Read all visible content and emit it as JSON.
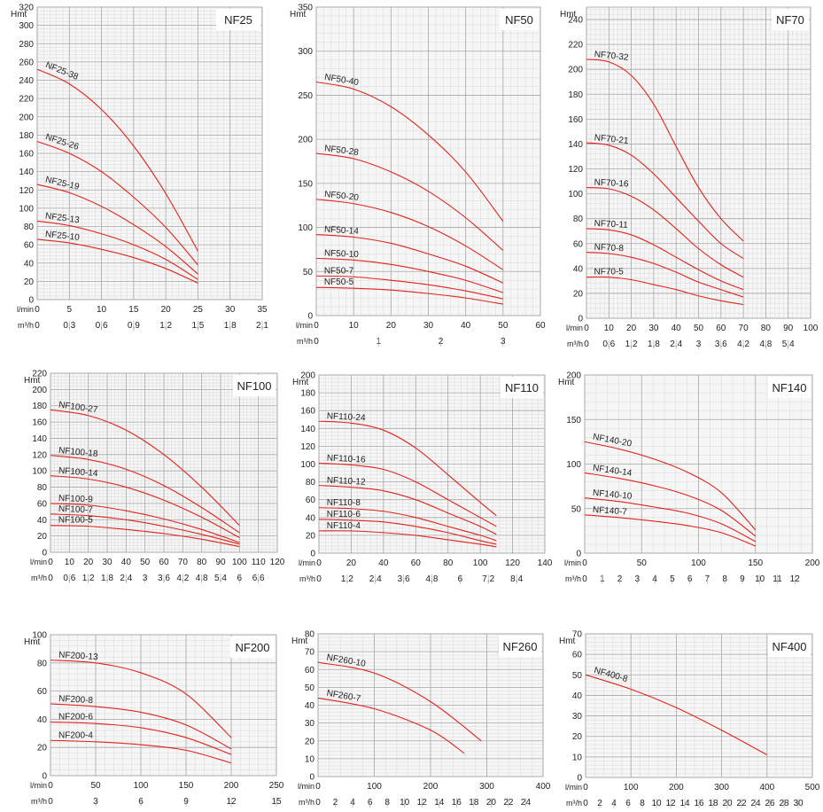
{
  "colors": {
    "curve": "#e2231a",
    "grid_minor": "#d9d9d9",
    "grid_major": "#a6a6a6",
    "plot_bg": "#f6f6f6",
    "text": "#222222"
  },
  "chart_data": [
    {
      "type": "line",
      "title": "NF25",
      "ylabel": "Hmt",
      "ylim": [
        0,
        320
      ],
      "yticks": [
        0,
        20,
        40,
        60,
        80,
        100,
        120,
        140,
        160,
        180,
        200,
        220,
        240,
        260,
        280,
        300,
        320
      ],
      "xlim": [
        0,
        35
      ],
      "xticks": [
        0,
        5,
        10,
        15,
        20,
        25,
        30,
        35
      ],
      "xlabel": "l/min",
      "xlabel2": "m³/h",
      "x2ticks": [
        "0",
        "0,3",
        "0,6",
        "0,9",
        "1,2",
        "1,5",
        "1,8",
        "2,1"
      ],
      "series": [
        {
          "name": "NF25-38",
          "x": [
            0,
            5,
            10,
            15,
            20,
            25
          ],
          "y": [
            252,
            236,
            208,
            168,
            116,
            53
          ]
        },
        {
          "name": "NF25-26",
          "x": [
            0,
            5,
            10,
            15,
            20,
            25
          ],
          "y": [
            173,
            160,
            140,
            112,
            79,
            38
          ]
        },
        {
          "name": "NF25-19",
          "x": [
            0,
            5,
            10,
            15,
            20,
            25
          ],
          "y": [
            126,
            117,
            102,
            82,
            58,
            28
          ]
        },
        {
          "name": "NF25-13",
          "x": [
            0,
            5,
            10,
            15,
            20,
            25
          ],
          "y": [
            86,
            81,
            72,
            60,
            44,
            22
          ]
        },
        {
          "name": "NF25-10",
          "x": [
            0,
            5,
            10,
            15,
            20,
            25
          ],
          "y": [
            66,
            62,
            55,
            46,
            34,
            18
          ]
        }
      ]
    },
    {
      "type": "line",
      "title": "NF50",
      "ylabel": "Hmt",
      "ylim": [
        0,
        350
      ],
      "yticks": [
        0,
        50,
        100,
        150,
        200,
        250,
        300,
        350
      ],
      "xlim": [
        0,
        60
      ],
      "xticks": [
        0,
        10,
        20,
        30,
        40,
        50,
        60
      ],
      "xlabel": "l/min",
      "xlabel2": "m³/h",
      "x2ticks": [
        "0",
        "1",
        "2",
        "3"
      ],
      "series": [
        {
          "name": "NF50-40",
          "x": [
            0,
            10,
            20,
            30,
            40,
            50
          ],
          "y": [
            265,
            257,
            237,
            205,
            163,
            107
          ]
        },
        {
          "name": "NF50-28",
          "x": [
            0,
            10,
            20,
            30,
            40,
            50
          ],
          "y": [
            184,
            178,
            163,
            141,
            111,
            74
          ]
        },
        {
          "name": "NF50-20",
          "x": [
            0,
            10,
            20,
            30,
            40,
            50
          ],
          "y": [
            132,
            127,
            117,
            101,
            79,
            52
          ]
        },
        {
          "name": "NF50-14",
          "x": [
            0,
            10,
            20,
            30,
            40,
            50
          ],
          "y": [
            92,
            89,
            82,
            70,
            56,
            37
          ]
        },
        {
          "name": "NF50-10",
          "x": [
            0,
            10,
            20,
            30,
            40,
            50
          ],
          "y": [
            65,
            63,
            58,
            50,
            40,
            26
          ]
        },
        {
          "name": "NF50-7",
          "x": [
            0,
            10,
            20,
            30,
            40,
            50
          ],
          "y": [
            45,
            44,
            40,
            35,
            28,
            19
          ]
        },
        {
          "name": "NF50-5",
          "x": [
            0,
            10,
            20,
            30,
            40,
            50
          ],
          "y": [
            32,
            31,
            29,
            25,
            20,
            13
          ]
        }
      ]
    },
    {
      "type": "line",
      "title": "NF70",
      "ylabel": "Hmt",
      "ylim": [
        0,
        250
      ],
      "yticks": [
        0,
        20,
        40,
        60,
        80,
        100,
        120,
        140,
        160,
        180,
        200,
        220,
        240
      ],
      "xlim": [
        0,
        100
      ],
      "xticks": [
        0,
        10,
        20,
        30,
        40,
        50,
        60,
        70,
        80,
        90,
        100
      ],
      "xlabel": "l/min",
      "xlabel2": "m³/h",
      "x2ticks": [
        "0",
        "0,6",
        "1,2",
        "1,8",
        "2,4",
        "3",
        "3,6",
        "4,2",
        "4,8",
        "5,4"
      ],
      "series": [
        {
          "name": "NF70-32",
          "x": [
            0,
            10,
            20,
            30,
            40,
            50,
            60,
            70
          ],
          "y": [
            208,
            206,
            195,
            172,
            138,
            105,
            80,
            62
          ]
        },
        {
          "name": "NF70-21",
          "x": [
            0,
            10,
            20,
            30,
            40,
            50,
            60,
            70
          ],
          "y": [
            141,
            139,
            131,
            116,
            97,
            78,
            60,
            48
          ]
        },
        {
          "name": "NF70-16",
          "x": [
            0,
            10,
            20,
            30,
            40,
            50,
            60,
            70
          ],
          "y": [
            105,
            104,
            98,
            87,
            72,
            56,
            43,
            33
          ]
        },
        {
          "name": "NF70-11",
          "x": [
            0,
            10,
            20,
            30,
            40,
            50,
            60,
            70
          ],
          "y": [
            72,
            71,
            67,
            59,
            49,
            39,
            30,
            23
          ]
        },
        {
          "name": "NF70-8",
          "x": [
            0,
            10,
            20,
            30,
            40,
            50,
            60,
            70
          ],
          "y": [
            53,
            52,
            49,
            44,
            37,
            29,
            23,
            17
          ]
        },
        {
          "name": "NF70-5",
          "x": [
            0,
            10,
            20,
            30,
            40,
            50,
            60,
            70
          ],
          "y": [
            33,
            33,
            31,
            27,
            23,
            18,
            14,
            11
          ]
        }
      ]
    },
    {
      "type": "line",
      "title": "NF100",
      "ylabel": "Hmt",
      "ylim": [
        0,
        220
      ],
      "yticks": [
        0,
        20,
        40,
        60,
        80,
        100,
        120,
        140,
        160,
        180,
        200,
        220
      ],
      "xlim": [
        0,
        120
      ],
      "xticks": [
        0,
        10,
        20,
        30,
        40,
        50,
        60,
        70,
        80,
        90,
        100,
        110,
        120
      ],
      "xlabel": "l/min",
      "xlabel2": "m³/h",
      "x2ticks": [
        "0",
        "0,6",
        "1,2",
        "1,8",
        "2,4",
        "3",
        "3,6",
        "4,2",
        "4,8",
        "5,4",
        "6",
        "6,6"
      ],
      "series": [
        {
          "name": "NF100-27",
          "x": [
            0,
            20,
            40,
            60,
            80,
            100
          ],
          "y": [
            175,
            168,
            150,
            120,
            80,
            33
          ]
        },
        {
          "name": "NF100-18",
          "x": [
            0,
            20,
            40,
            60,
            80,
            100
          ],
          "y": [
            119,
            114,
            102,
            82,
            55,
            24
          ]
        },
        {
          "name": "NF100-14",
          "x": [
            0,
            20,
            40,
            60,
            80,
            100
          ],
          "y": [
            94,
            90,
            80,
            64,
            43,
            18
          ]
        },
        {
          "name": "NF100-9",
          "x": [
            0,
            20,
            40,
            60,
            80,
            100
          ],
          "y": [
            60,
            58,
            51,
            41,
            28,
            12
          ]
        },
        {
          "name": "NF100-7",
          "x": [
            0,
            20,
            40,
            60,
            80,
            100
          ],
          "y": [
            47,
            45,
            40,
            32,
            22,
            10
          ]
        },
        {
          "name": "NF100-5",
          "x": [
            0,
            20,
            40,
            60,
            80,
            100
          ],
          "y": [
            33,
            32,
            28,
            23,
            16,
            7
          ]
        }
      ]
    },
    {
      "type": "line",
      "title": "NF110",
      "ylabel": "Hmt",
      "ylim": [
        0,
        200
      ],
      "yticks": [
        0,
        20,
        40,
        60,
        80,
        100,
        120,
        140,
        160,
        180,
        200
      ],
      "xlim": [
        0,
        140
      ],
      "xticks": [
        0,
        20,
        40,
        60,
        80,
        100,
        120,
        140
      ],
      "xlabel": "l/min",
      "xlabel2": "m³/h",
      "x2ticks": [
        "0",
        "1,2",
        "2,4",
        "3,6",
        "4,8",
        "6",
        "7,2",
        "8,4"
      ],
      "series": [
        {
          "name": "NF110-24",
          "x": [
            0,
            20,
            40,
            60,
            80,
            100,
            110
          ],
          "y": [
            148,
            146,
            138,
            118,
            88,
            57,
            42
          ]
        },
        {
          "name": "NF110-16",
          "x": [
            0,
            20,
            40,
            60,
            80,
            100,
            110
          ],
          "y": [
            101,
            99,
            94,
            80,
            60,
            40,
            30
          ]
        },
        {
          "name": "NF110-12",
          "x": [
            0,
            20,
            40,
            60,
            80,
            100,
            110
          ],
          "y": [
            76,
            74,
            70,
            60,
            45,
            30,
            21
          ]
        },
        {
          "name": "NF110-8",
          "x": [
            0,
            20,
            40,
            60,
            80,
            100,
            110
          ],
          "y": [
            51,
            50,
            47,
            40,
            30,
            20,
            14
          ]
        },
        {
          "name": "NF110-6",
          "x": [
            0,
            20,
            40,
            60,
            80,
            100,
            110
          ],
          "y": [
            38,
            37,
            35,
            30,
            23,
            14,
            10
          ]
        },
        {
          "name": "NF110-4",
          "x": [
            0,
            20,
            40,
            60,
            80,
            100,
            110
          ],
          "y": [
            25,
            25,
            23,
            20,
            15,
            10,
            7
          ]
        }
      ]
    },
    {
      "type": "line",
      "title": "NF140",
      "ylabel": "Hmt",
      "ylim": [
        0,
        200
      ],
      "yticks": [
        0,
        50,
        100,
        150,
        200
      ],
      "xlim": [
        0,
        200
      ],
      "xticks": [
        0,
        50,
        100,
        150,
        200
      ],
      "xlabel": "l/min",
      "xlabel2": "m³/h",
      "x2ticks": [
        "0",
        "1",
        "2",
        "3",
        "4",
        "5",
        "6",
        "7",
        "8",
        "9",
        "10",
        "11",
        "12"
      ],
      "series": [
        {
          "name": "NF140-20",
          "x": [
            0,
            30,
            60,
            90,
            120,
            150
          ],
          "y": [
            125,
            117,
            106,
            91,
            68,
            26
          ]
        },
        {
          "name": "NF140-14",
          "x": [
            0,
            30,
            60,
            90,
            120,
            150
          ],
          "y": [
            90,
            84,
            76,
            65,
            48,
            19
          ]
        },
        {
          "name": "NF140-10",
          "x": [
            0,
            30,
            60,
            90,
            120,
            150
          ],
          "y": [
            62,
            58,
            52,
            45,
            33,
            13
          ]
        },
        {
          "name": "NF140-7",
          "x": [
            0,
            30,
            60,
            90,
            120,
            150
          ],
          "y": [
            43,
            40,
            36,
            31,
            23,
            8
          ]
        }
      ]
    },
    {
      "type": "line",
      "title": "NF200",
      "ylabel": "Hmt",
      "ylim": [
        0,
        100
      ],
      "yticks": [
        0,
        20,
        40,
        60,
        80,
        100
      ],
      "xlim": [
        0,
        250
      ],
      "xticks": [
        0,
        50,
        100,
        150,
        200,
        250
      ],
      "xlabel": "l/min",
      "xlabel2": "m³/h",
      "x2ticks": [
        "0",
        "3",
        "6",
        "9",
        "12",
        "15"
      ],
      "series": [
        {
          "name": "NF200-13",
          "x": [
            0,
            50,
            100,
            150,
            200
          ],
          "y": [
            82,
            80,
            73,
            58,
            27
          ]
        },
        {
          "name": "NF200-8",
          "x": [
            0,
            50,
            100,
            150,
            200
          ],
          "y": [
            51,
            49,
            45,
            36,
            19
          ]
        },
        {
          "name": "NF200-6",
          "x": [
            0,
            50,
            100,
            150,
            200
          ],
          "y": [
            38,
            37,
            34,
            27,
            15
          ]
        },
        {
          "name": "NF200-4",
          "x": [
            0,
            50,
            100,
            150,
            200
          ],
          "y": [
            25,
            24,
            22,
            18,
            9
          ]
        }
      ]
    },
    {
      "type": "line",
      "title": "NF260",
      "ylabel": "Hmt",
      "ylim": [
        0,
        80
      ],
      "yticks": [
        0,
        10,
        20,
        30,
        40,
        50,
        60,
        70,
        80
      ],
      "xlim": [
        0,
        400
      ],
      "xticks": [
        0,
        100,
        200,
        300,
        400
      ],
      "xlabel": "l/min",
      "xlabel2": "m³/h",
      "x2ticks": [
        "0",
        "2",
        "4",
        "6",
        "8",
        "10",
        "12",
        "14",
        "16",
        "18",
        "20",
        "22",
        "24"
      ],
      "series": [
        {
          "name": "NF260-10",
          "x": [
            0,
            100,
            200,
            290
          ],
          "y": [
            64,
            58,
            42,
            20
          ]
        },
        {
          "name": "NF260-7",
          "x": [
            0,
            100,
            200,
            260
          ],
          "y": [
            44,
            38,
            26,
            13
          ]
        }
      ]
    },
    {
      "type": "line",
      "title": "NF400",
      "ylabel": "Hmt",
      "ylim": [
        0,
        70
      ],
      "yticks": [
        0,
        10,
        20,
        30,
        40,
        50,
        60,
        70
      ],
      "xlim": [
        0,
        500
      ],
      "xticks": [
        0,
        100,
        200,
        300,
        400,
        500
      ],
      "xlabel": "l/min",
      "xlabel2": "m³/h",
      "x2ticks": [
        "0",
        "2",
        "4",
        "6",
        "8",
        "10",
        "12",
        "14",
        "16",
        "18",
        "20",
        "22",
        "24",
        "26",
        "28",
        "30"
      ],
      "series": [
        {
          "name": "NF400-8",
          "x": [
            0,
            100,
            200,
            300,
            400
          ],
          "y": [
            50,
            43,
            34,
            23,
            11
          ]
        }
      ]
    }
  ]
}
